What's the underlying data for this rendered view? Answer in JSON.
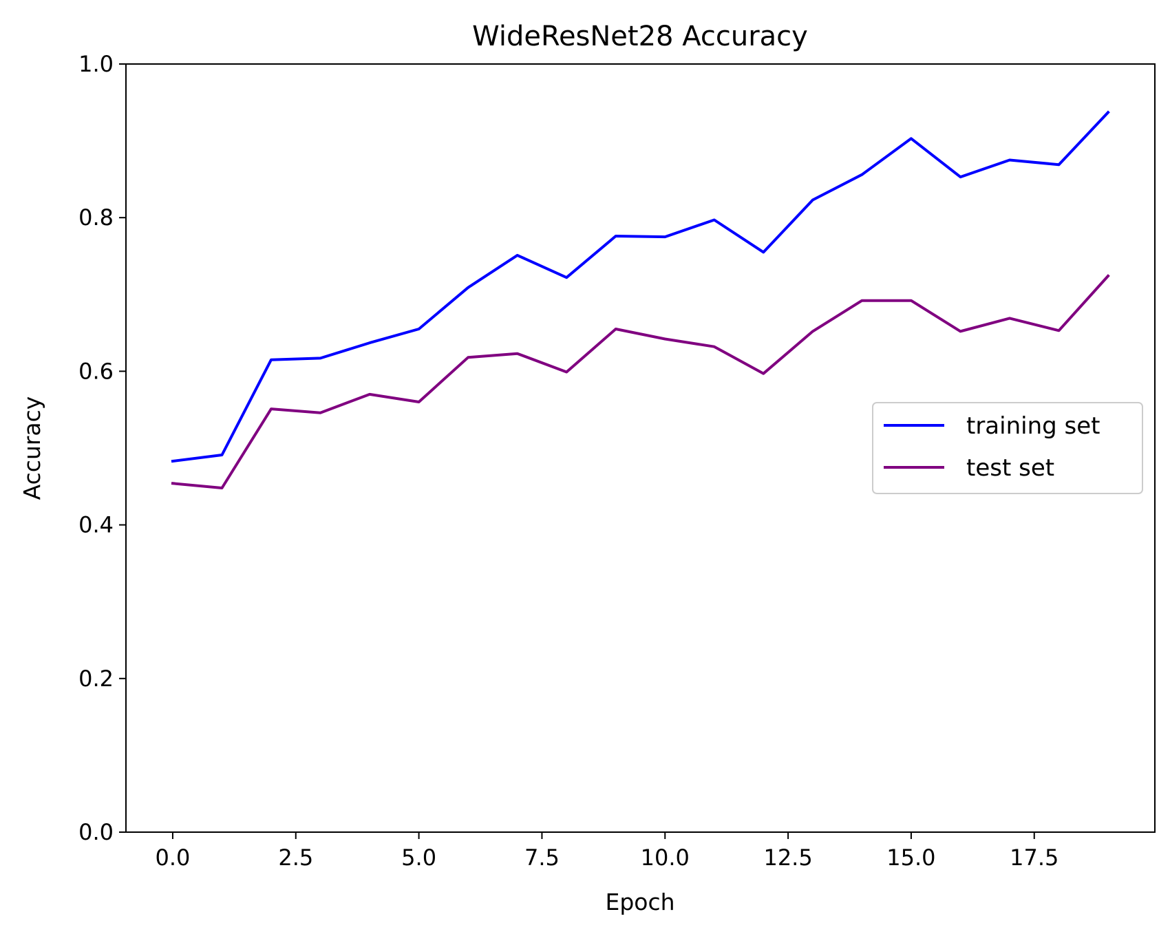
{
  "chart_data": {
    "type": "line",
    "title": "WideResNet28 Accuracy",
    "xlabel": "Epoch",
    "ylabel": "Accuracy",
    "x": [
      0,
      1,
      2,
      3,
      4,
      5,
      6,
      7,
      8,
      9,
      10,
      11,
      12,
      13,
      14,
      15,
      16,
      17,
      18,
      19
    ],
    "xlim": [
      -0.95,
      19.95
    ],
    "ylim": [
      0.0,
      1.0
    ],
    "xticks": [
      0.0,
      2.5,
      5.0,
      7.5,
      10.0,
      12.5,
      15.0,
      17.5
    ],
    "xtick_labels": [
      "0.0",
      "2.5",
      "5.0",
      "7.5",
      "10.0",
      "12.5",
      "15.0",
      "17.5"
    ],
    "yticks": [
      0.0,
      0.2,
      0.4,
      0.6,
      0.8,
      1.0
    ],
    "ytick_labels": [
      "0.0",
      "0.2",
      "0.4",
      "0.6",
      "0.8",
      "1.0"
    ],
    "grid": false,
    "legend_position": "center-right",
    "series": [
      {
        "name": "training set",
        "color": "#0000ff",
        "values": [
          0.483,
          0.491,
          0.615,
          0.617,
          0.637,
          0.655,
          0.709,
          0.751,
          0.722,
          0.776,
          0.775,
          0.797,
          0.755,
          0.823,
          0.856,
          0.903,
          0.853,
          0.875,
          0.869,
          0.937
        ]
      },
      {
        "name": "test set",
        "color": "#800080",
        "values": [
          0.454,
          0.448,
          0.551,
          0.546,
          0.57,
          0.56,
          0.618,
          0.623,
          0.599,
          0.655,
          0.642,
          0.632,
          0.597,
          0.652,
          0.692,
          0.692,
          0.652,
          0.669,
          0.653,
          0.724
        ]
      }
    ]
  }
}
